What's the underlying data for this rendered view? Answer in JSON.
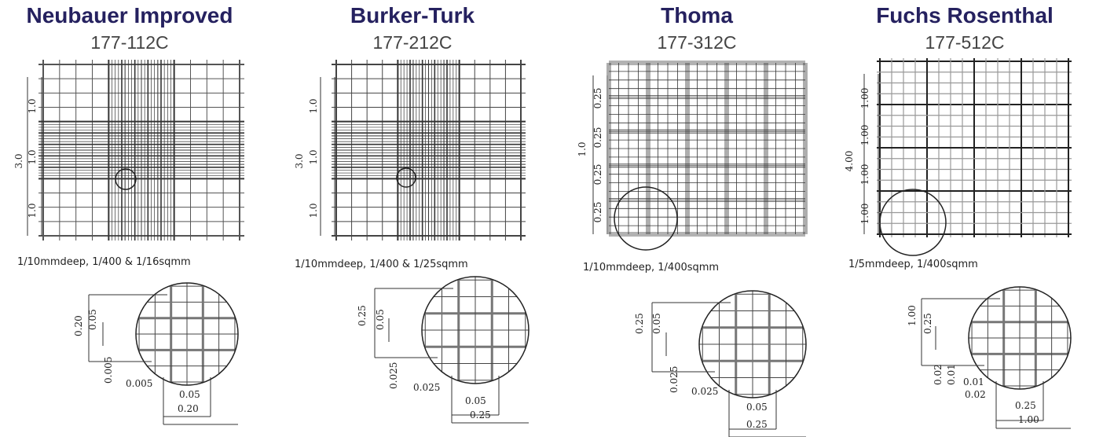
{
  "panels": [
    {
      "title": "Neubauer Improved",
      "code": "177-112C",
      "grid_labels": [
        "3.0",
        "1.0",
        "1.0",
        "1.0"
      ],
      "description": "1/10mmdeep, 1/400 & 1/16sqmm",
      "zoom_labels": [
        "0.20",
        "0.05",
        "0.005",
        "0.005",
        "0.05",
        "0.20"
      ]
    },
    {
      "title": "Burker-Turk",
      "code": "177-212C",
      "grid_labels": [
        "3.0",
        "1.0",
        "1.0",
        "1.0"
      ],
      "description": "1/10mmdeep, 1/400 & 1/25sqmm",
      "zoom_labels": [
        "0.25",
        "0.05",
        "0.025",
        "0.025",
        "0.05",
        "0.25"
      ]
    },
    {
      "title": "Thoma",
      "code": "177-312C",
      "grid_labels": [
        "1.0",
        "0.25",
        "0.25",
        "0.25",
        "0.25"
      ],
      "description": "1/10mmdeep, 1/400sqmm",
      "zoom_labels": [
        "0.25",
        "0.05",
        "0.025",
        "0.025",
        "0.05",
        "0.25"
      ]
    },
    {
      "title": "Fuchs Rosenthal",
      "code": "177-512C",
      "grid_labels": [
        "4.00",
        "1.00",
        "1.00",
        "1.00",
        "1.00"
      ],
      "description": "1/5mmdeep, 1/400sqmm",
      "zoom_labels": [
        "1.00",
        "0.25",
        "0.02",
        "0.01",
        "0.01",
        "0.02",
        "0.25",
        "1.00"
      ]
    }
  ]
}
